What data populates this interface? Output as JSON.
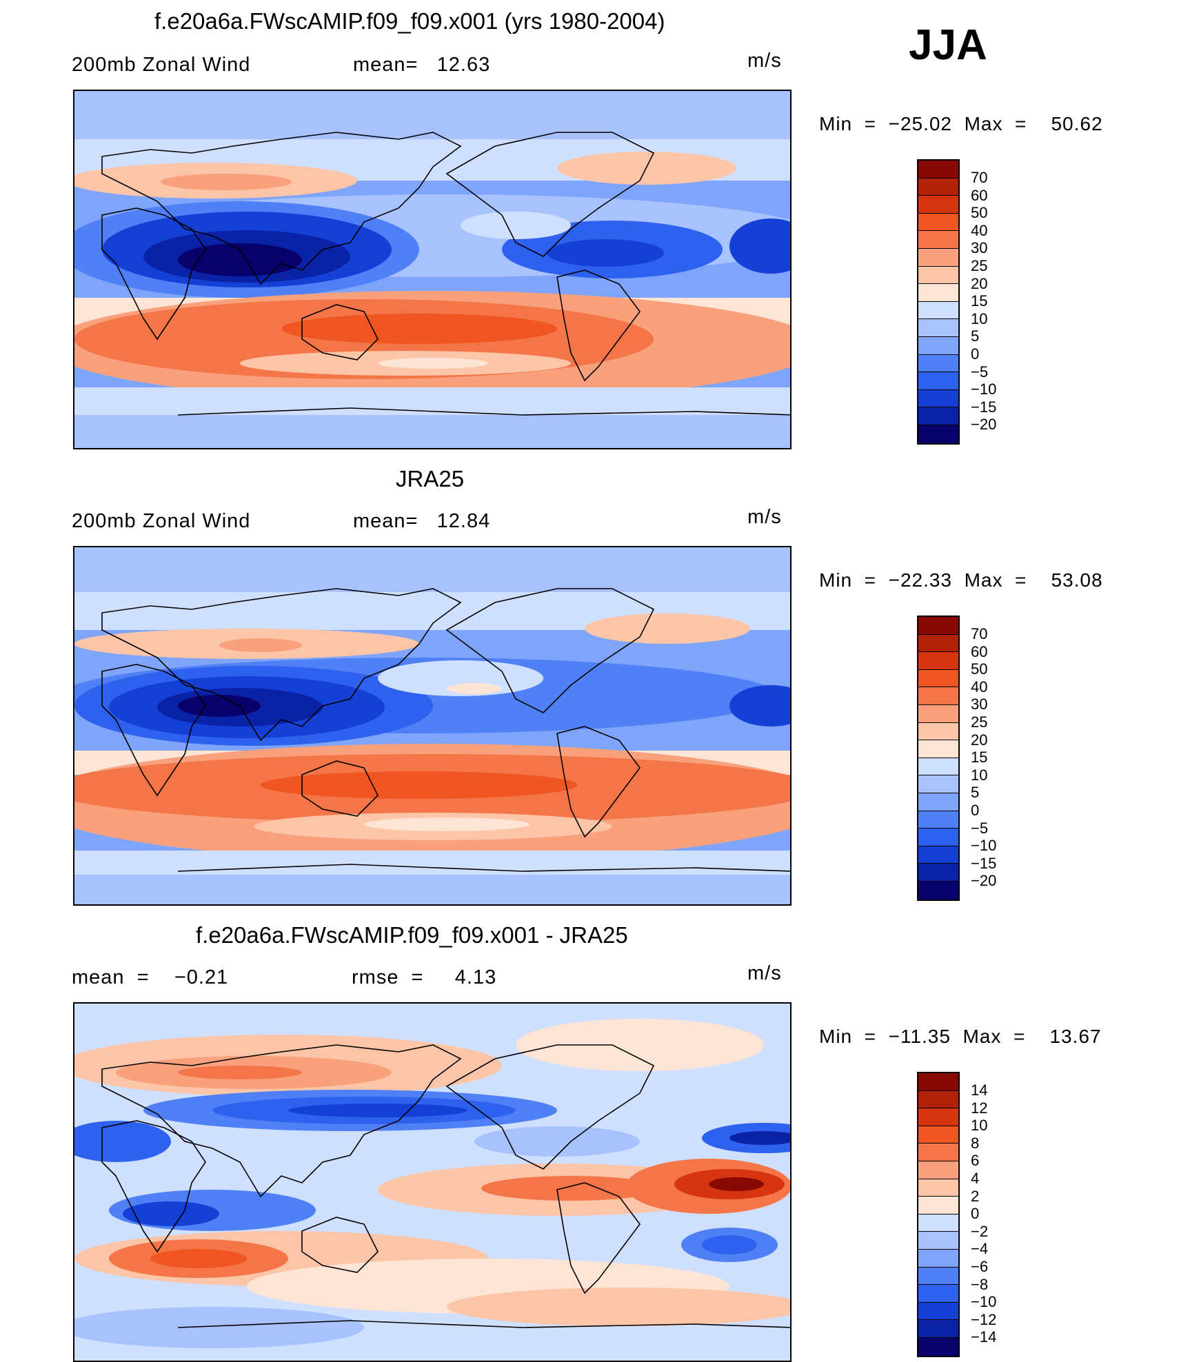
{
  "season": "JJA",
  "colors": {
    "full_scale": [
      "#08006b",
      "#0922a6",
      "#1540d6",
      "#2e62ee",
      "#4f80f6",
      "#7fa5fb",
      "#a8c2fd",
      "#cfe0ff",
      "#fde5d5",
      "#fcc5a8",
      "#f9a17c",
      "#f47648",
      "#ef5621",
      "#d63510",
      "#b22208",
      "#860a03"
    ],
    "diff_scale": [
      "#08006b",
      "#0922a6",
      "#1540d6",
      "#2e62ee",
      "#4f80f6",
      "#7fa5fb",
      "#a8c2fd",
      "#cfe0ff",
      "#fde5d5",
      "#fcc5a8",
      "#f9a17c",
      "#f47648",
      "#ef5621",
      "#d63510",
      "#b22208",
      "#860a03"
    ]
  },
  "panels": [
    {
      "id": "model",
      "title": "f.e20a6a.FWscAMIP.f09_f09.x001 (yrs 1980-2004)",
      "variable": "200mb Zonal Wind",
      "left_label": "mean=   12.63",
      "middle_label": "",
      "units": "m/s",
      "min_max": "Min  =  −25.02  Max  =    50.62",
      "colorbar_ticks": [
        "70",
        "60",
        "50",
        "40",
        "30",
        "25",
        "20",
        "15",
        "10",
        "5",
        "0",
        "−5",
        "−10",
        "−15",
        "−20"
      ]
    },
    {
      "id": "obs",
      "title": "JRA25",
      "variable": "200mb Zonal Wind",
      "left_label": "mean=   12.84",
      "middle_label": "",
      "units": "m/s",
      "min_max": "Min  =  −22.33  Max  =    53.08",
      "colorbar_ticks": [
        "70",
        "60",
        "50",
        "40",
        "30",
        "25",
        "20",
        "15",
        "10",
        "5",
        "0",
        "−5",
        "−10",
        "−15",
        "−20"
      ]
    },
    {
      "id": "diff",
      "title": "f.e20a6a.FWscAMIP.f09_f09.x001 - JRA25",
      "variable": "mean  =    −0.21",
      "left_label": "rmse  =     4.13",
      "middle_label": "",
      "units": "m/s",
      "min_max": "Min  =  −11.35  Max  =    13.67",
      "colorbar_ticks": [
        "14",
        "12",
        "10",
        "8",
        "6",
        "4",
        "2",
        "0",
        "−2",
        "−4",
        "−6",
        "−8",
        "−10",
        "−12",
        "−14"
      ]
    }
  ]
}
